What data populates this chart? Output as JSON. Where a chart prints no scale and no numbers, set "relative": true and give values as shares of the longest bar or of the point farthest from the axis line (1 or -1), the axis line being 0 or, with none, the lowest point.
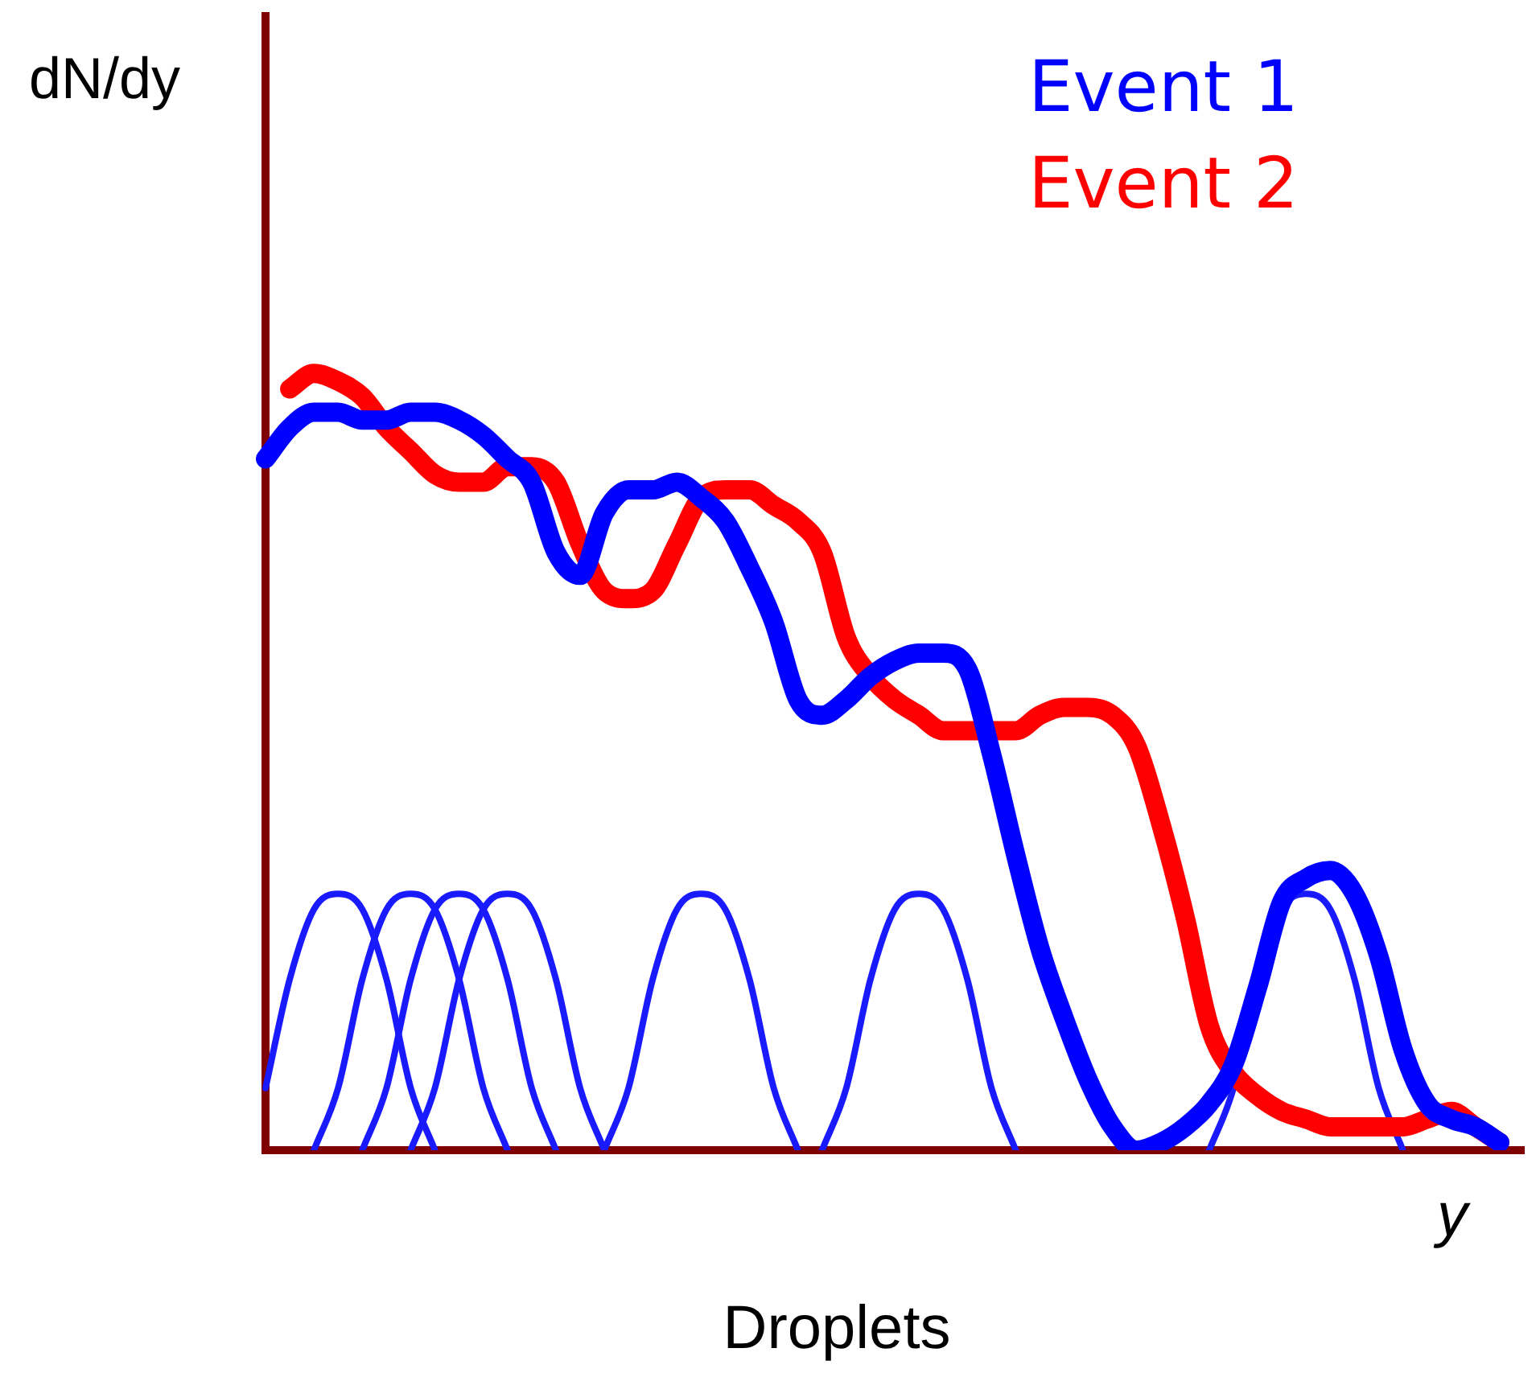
{
  "chart_data": {
    "type": "line",
    "relative": true,
    "ylabel": "dN/dy",
    "xlabel": "y",
    "annotations": [
      "Droplets"
    ],
    "legend": "top right",
    "categories": [
      null,
      null,
      null,
      null,
      null,
      null,
      null,
      null,
      null,
      null,
      null,
      null,
      null,
      null,
      null,
      null,
      null,
      null,
      null,
      null,
      null,
      null,
      null,
      null,
      null,
      null,
      null,
      null,
      null,
      null,
      null,
      null,
      null,
      null,
      null,
      null,
      null,
      null,
      null,
      null,
      null,
      null,
      null,
      null,
      null,
      null,
      null,
      null,
      null,
      null,
      null,
      null,
      null
    ],
    "series": [
      {
        "name": "Event 1",
        "color": "#0000ff",
        "values": [
          0.89,
          0.93,
          0.95,
          0.95,
          0.94,
          0.94,
          0.95,
          0.95,
          0.94,
          0.92,
          0.89,
          0.86,
          0.77,
          0.74,
          0.82,
          0.85,
          0.85,
          0.86,
          0.84,
          0.81,
          0.75,
          0.68,
          0.58,
          0.56,
          0.58,
          0.61,
          0.63,
          0.64,
          0.64,
          0.62,
          0.51,
          0.38,
          0.26,
          0.17,
          0.09,
          0.03,
          0.0,
          0.01,
          0.03,
          0.06,
          0.11,
          0.21,
          0.32,
          0.35,
          0.36,
          0.33,
          0.25,
          0.13,
          0.06,
          0.04,
          0.03,
          0.01,
          null
        ]
      },
      {
        "name": "Event 2",
        "color": "#ff0000",
        "values": [
          null,
          0.98,
          1.0,
          0.99,
          0.97,
          0.93,
          0.9,
          0.87,
          0.86,
          0.86,
          0.88,
          0.88,
          0.86,
          0.78,
          0.72,
          0.71,
          0.72,
          0.78,
          0.84,
          0.85,
          0.85,
          0.83,
          0.81,
          0.77,
          0.66,
          0.61,
          0.58,
          0.56,
          0.54,
          0.54,
          0.54,
          0.54,
          0.56,
          0.57,
          0.57,
          0.56,
          0.52,
          0.42,
          0.3,
          0.16,
          0.1,
          0.07,
          0.05,
          0.04,
          0.03,
          0.03,
          0.03,
          0.03,
          0.04,
          0.05,
          0.03,
          0.01,
          null
        ]
      },
      {
        "color": "#1a1aff",
        "values": [
          0.08,
          0.22,
          0.31,
          0.33,
          0.31,
          0.22,
          0.08,
          0,
          null,
          null,
          null,
          null,
          null,
          null,
          null,
          null,
          null,
          null,
          null,
          null,
          null,
          null,
          null,
          null,
          null,
          null,
          null,
          null,
          null,
          null,
          null,
          null,
          null,
          null,
          null,
          null,
          null,
          null,
          null,
          null,
          null,
          null,
          null,
          null,
          null,
          null,
          null,
          null,
          null,
          null,
          null,
          null,
          null
        ]
      },
      {
        "color": "#1a1aff",
        "values": [
          null,
          null,
          0,
          0.08,
          0.22,
          0.31,
          0.33,
          0.31,
          0.22,
          0.08,
          0,
          null,
          null,
          null,
          null,
          null,
          null,
          null,
          null,
          null,
          null,
          null,
          null,
          null,
          null,
          null,
          null,
          null,
          null,
          null,
          null,
          null,
          null,
          null,
          null,
          null,
          null,
          null,
          null,
          null,
          null,
          null,
          null,
          null,
          null,
          null,
          null,
          null,
          null,
          null,
          null,
          null,
          null
        ]
      },
      {
        "color": "#1a1aff",
        "values": [
          null,
          null,
          null,
          null,
          0,
          0.08,
          0.22,
          0.31,
          0.33,
          0.31,
          0.22,
          0.08,
          0,
          null,
          null,
          null,
          null,
          null,
          null,
          null,
          null,
          null,
          null,
          null,
          null,
          null,
          null,
          null,
          null,
          null,
          null,
          null,
          null,
          null,
          null,
          null,
          null,
          null,
          null,
          null,
          null,
          null,
          null,
          null,
          null,
          null,
          null,
          null,
          null,
          null,
          null,
          null,
          null
        ]
      },
      {
        "color": "#1a1aff",
        "values": [
          null,
          null,
          null,
          null,
          null,
          null,
          0,
          0.08,
          0.22,
          0.31,
          0.33,
          0.31,
          0.22,
          0.08,
          0,
          null,
          null,
          null,
          null,
          null,
          null,
          null,
          null,
          null,
          null,
          null,
          null,
          null,
          null,
          null,
          null,
          null,
          null,
          null,
          null,
          null,
          null,
          null,
          null,
          null,
          null,
          null,
          null,
          null,
          null,
          null,
          null,
          null,
          null,
          null,
          null,
          null,
          null
        ]
      },
      {
        "color": "#1a1aff",
        "values": [
          null,
          null,
          null,
          null,
          null,
          null,
          null,
          null,
          null,
          null,
          null,
          null,
          null,
          null,
          0,
          0.08,
          0.22,
          0.31,
          0.33,
          0.31,
          0.22,
          0.08,
          0,
          null,
          null,
          null,
          null,
          null,
          null,
          null,
          null,
          null,
          null,
          null,
          null,
          null,
          null,
          null,
          null,
          null,
          null,
          null,
          null,
          null,
          null,
          null,
          null,
          null,
          null,
          null,
          null,
          null,
          null
        ]
      },
      {
        "color": "#1a1aff",
        "values": [
          null,
          null,
          null,
          null,
          null,
          null,
          null,
          null,
          null,
          null,
          null,
          null,
          null,
          null,
          null,
          null,
          null,
          null,
          null,
          null,
          null,
          null,
          null,
          0,
          0.08,
          0.22,
          0.31,
          0.33,
          0.31,
          0.22,
          0.08,
          0,
          null,
          null,
          null,
          null,
          null,
          null,
          null,
          null,
          null,
          null,
          null,
          null,
          null,
          null,
          null,
          null,
          null,
          null,
          null,
          null,
          null
        ]
      },
      {
        "color": "#1a1aff",
        "values": [
          null,
          null,
          null,
          null,
          null,
          null,
          null,
          null,
          null,
          null,
          null,
          null,
          null,
          null,
          null,
          null,
          null,
          null,
          null,
          null,
          null,
          null,
          null,
          null,
          null,
          null,
          null,
          null,
          null,
          null,
          null,
          null,
          null,
          null,
          null,
          null,
          null,
          null,
          null,
          0,
          0.08,
          0.22,
          0.31,
          0.33,
          0.31,
          0.22,
          0.08,
          0,
          null,
          null,
          null,
          null,
          null
        ]
      }
    ]
  }
}
